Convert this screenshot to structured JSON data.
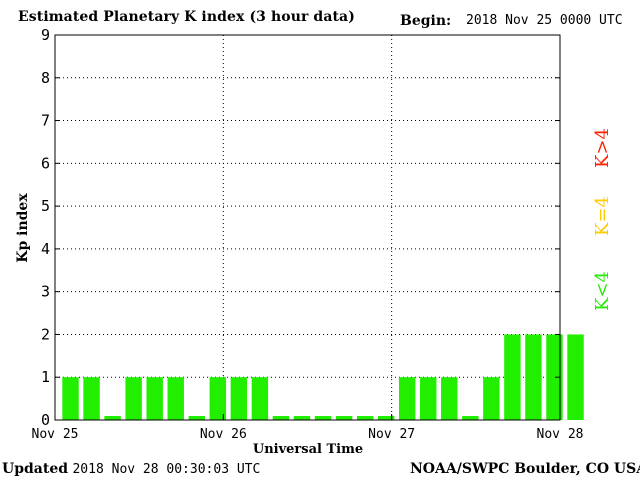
{
  "header": {
    "title": "Estimated Planetary K index (3 hour data)",
    "begin_label": "Begin:",
    "begin_value": "2018 Nov 25 0000 UTC"
  },
  "footer": {
    "updated_label": "Updated",
    "updated_value": "2018 Nov 28 00:30:03 UTC",
    "source": "NOAA/SWPC Boulder, CO USA"
  },
  "legend": {
    "high": {
      "label": "K>4",
      "color": "#ff2200"
    },
    "mid": {
      "label": "K=4",
      "color": "#ffcc00"
    },
    "low": {
      "label": "K<4",
      "color": "#22ee00"
    }
  },
  "chart_data": {
    "type": "bar",
    "xlabel": "Universal Time",
    "ylabel": "Kp index",
    "ylim": [
      0,
      9
    ],
    "y_ticks": [
      0,
      1,
      2,
      3,
      4,
      5,
      6,
      7,
      8,
      9
    ],
    "x_tick_labels": [
      "Nov 25",
      "Nov 26",
      "Nov 27",
      "Nov 28"
    ],
    "grid": true,
    "bar_color": "#22ee00",
    "values": [
      1,
      1,
      0,
      1,
      1,
      1,
      0,
      1,
      1,
      1,
      0,
      0,
      0,
      0,
      0,
      0,
      1,
      1,
      1,
      0,
      1,
      2,
      2,
      2,
      2
    ]
  }
}
